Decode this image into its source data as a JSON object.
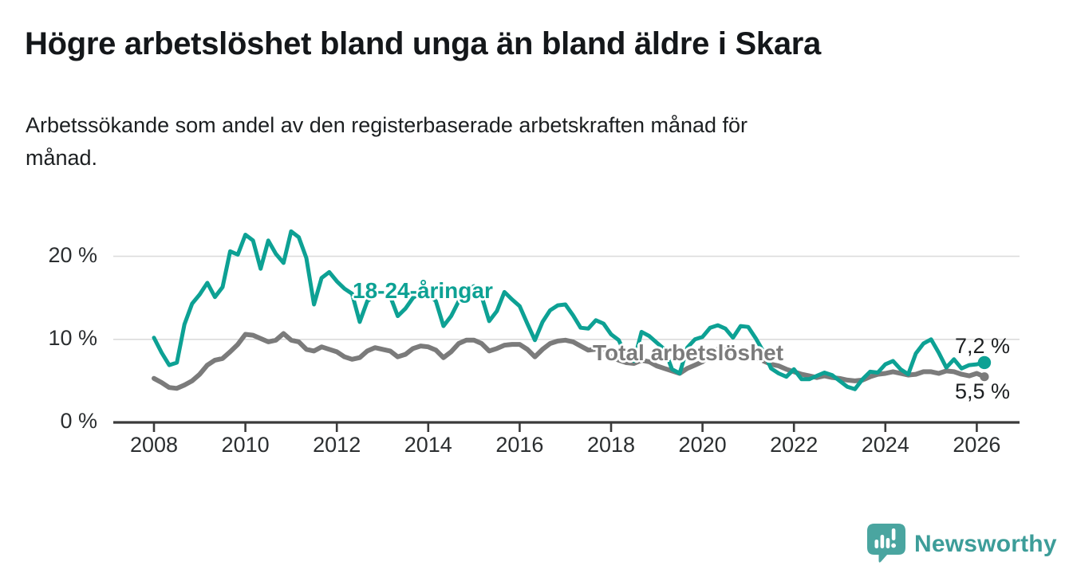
{
  "header": {
    "title": "Högre arbetslöshet bland unga än bland äldre i Skara",
    "subtitle": "Arbetssökande som andel av den registerbaserade arbetskraften månad för\nmånad."
  },
  "chart_data": {
    "type": "line",
    "title": "Högre arbetslöshet bland unga än bland äldre i Skara",
    "subtitle": "Arbetssökande som andel av den registerbaserade arbetskraften månad för månad.",
    "x_unit": "decimal_year",
    "x_start": 2008.0,
    "x_step_years": 0.1666667,
    "xlim": [
      2007.0,
      2027.0
    ],
    "ylim": [
      0,
      24
    ],
    "grid": "horizontal",
    "x_ticks": [
      2008,
      2010,
      2012,
      2014,
      2016,
      2018,
      2020,
      2022,
      2024,
      2026
    ],
    "y_ticks": [
      {
        "value": 0,
        "label": "0 %"
      },
      {
        "value": 10,
        "label": "10 %"
      },
      {
        "value": 20,
        "label": "20 %"
      }
    ],
    "series": [
      {
        "name": "18-24-åringar",
        "color": "#0da194",
        "end_label": "7,2 %",
        "end_value": 7.2,
        "values": [
          10.2,
          8.4,
          6.9,
          7.2,
          11.8,
          14.3,
          15.4,
          16.8,
          15.1,
          16.3,
          20.6,
          20.2,
          22.6,
          21.9,
          18.5,
          21.9,
          20.3,
          19.2,
          23.0,
          22.3,
          19.8,
          14.2,
          17.4,
          18.1,
          17.0,
          16.1,
          15.5,
          12.1,
          14.6,
          15.3,
          15.8,
          15.2,
          12.8,
          13.7,
          15.0,
          15.6,
          15.5,
          14.6,
          11.6,
          12.8,
          14.6,
          16.0,
          16.4,
          15.2,
          12.2,
          13.4,
          15.7,
          14.8,
          14.0,
          11.9,
          9.9,
          12.1,
          13.5,
          14.1,
          14.2,
          12.9,
          11.4,
          11.3,
          12.3,
          11.9,
          10.6,
          9.9,
          8.0,
          7.4,
          10.9,
          10.4,
          9.6,
          8.8,
          6.4,
          5.9,
          9.0,
          10.0,
          10.3,
          11.4,
          11.7,
          11.3,
          10.2,
          11.6,
          11.5,
          10.1,
          8.5,
          6.5,
          5.9,
          5.5,
          6.4,
          5.2,
          5.2,
          5.6,
          6.0,
          5.7,
          5.0,
          4.3,
          4.0,
          5.2,
          6.1,
          6.0,
          7.0,
          7.4,
          6.4,
          5.8,
          8.3,
          9.5,
          10.0,
          8.4,
          6.6,
          7.6,
          6.5,
          6.9,
          7.0,
          7.2
        ]
      },
      {
        "name": "Total arbetslöshet",
        "color": "#7b7b7b",
        "end_label": "5,5 %",
        "end_value": 5.5,
        "values": [
          5.3,
          4.8,
          4.2,
          4.1,
          4.5,
          5.0,
          5.8,
          6.9,
          7.5,
          7.7,
          8.5,
          9.4,
          10.6,
          10.5,
          10.1,
          9.7,
          9.9,
          10.7,
          9.9,
          9.7,
          8.8,
          8.6,
          9.1,
          8.8,
          8.5,
          7.9,
          7.6,
          7.8,
          8.6,
          9.0,
          8.8,
          8.6,
          7.9,
          8.2,
          8.9,
          9.2,
          9.1,
          8.7,
          7.8,
          8.5,
          9.5,
          9.9,
          9.9,
          9.5,
          8.6,
          8.9,
          9.3,
          9.4,
          9.4,
          8.8,
          7.9,
          8.8,
          9.5,
          9.8,
          9.9,
          9.7,
          9.2,
          8.7,
          8.8,
          8.4,
          7.9,
          7.5,
          7.2,
          7.1,
          7.5,
          7.3,
          6.8,
          6.5,
          6.2,
          5.9,
          6.5,
          6.9,
          7.3,
          8.2,
          8.8,
          8.7,
          8.5,
          8.3,
          8.2,
          7.9,
          7.4,
          7.0,
          6.8,
          6.4,
          6.1,
          5.8,
          5.6,
          5.4,
          5.6,
          5.4,
          5.3,
          5.1,
          5.0,
          5.1,
          5.5,
          5.8,
          5.9,
          6.1,
          5.9,
          5.7,
          5.8,
          6.1,
          6.1,
          5.9,
          6.2,
          6.1,
          5.8,
          5.6,
          5.9,
          5.5
        ]
      }
    ],
    "colors": {
      "grid": "#dcdcdc",
      "axis": "#3a3a3a",
      "tick_label": "#2b2e30",
      "value_label": "#1c1f21"
    }
  },
  "footer": {
    "brand": "Newsworthy",
    "brand_color": "#3d9d99",
    "icon_color": "#4aa5a0"
  }
}
